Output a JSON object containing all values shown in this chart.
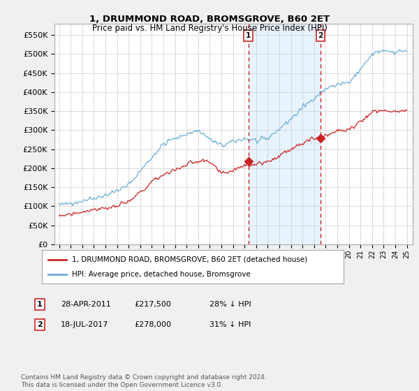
{
  "title": "1, DRUMMOND ROAD, BROMSGROVE, B60 2ET",
  "subtitle": "Price paid vs. HM Land Registry's House Price Index (HPI)",
  "ytick_vals": [
    0,
    50000,
    100000,
    150000,
    200000,
    250000,
    300000,
    350000,
    400000,
    450000,
    500000,
    550000
  ],
  "ylim": [
    0,
    580000
  ],
  "hpi_color": "#6baed6",
  "price_color": "#cc2222",
  "vline_color": "#cc2222",
  "shade_color": "#ddeeff",
  "transaction1_date": 2011.32,
  "transaction1_price": 217500,
  "transaction2_date": 2017.55,
  "transaction2_price": 278000,
  "legend_entry1": "1, DRUMMOND ROAD, BROMSGROVE, B60 2ET (detached house)",
  "legend_entry2": "HPI: Average price, detached house, Bromsgrove",
  "footnote": "Contains HM Land Registry data © Crown copyright and database right 2024.\nThis data is licensed under the Open Government Licence v3.0.",
  "background_color": "#f0f0f0",
  "plot_bg_color": "#ffffff",
  "grid_color": "#cccccc",
  "hpi_keypoints": {
    "1995.0": 103000,
    "1996": 108000,
    "1997": 115000,
    "1998": 122000,
    "1999": 130000,
    "2000": 140000,
    "2001": 158000,
    "2002": 195000,
    "2003": 230000,
    "2004": 265000,
    "2005": 278000,
    "2006": 290000,
    "2007": 300000,
    "2008": 275000,
    "2009": 260000,
    "2010": 270000,
    "2011": 278000,
    "2012": 272000,
    "2013": 278000,
    "2014": 305000,
    "2015": 330000,
    "2016": 360000,
    "2017": 385000,
    "2018": 410000,
    "2019": 420000,
    "2020": 425000,
    "2021": 460000,
    "2022": 500000,
    "2023": 510000,
    "2024": 505000,
    "2025.0": 510000
  },
  "price_keypoints": {
    "1995.0": 75000,
    "1996": 80000,
    "1997": 86000,
    "1998": 92000,
    "1999": 96000,
    "2000": 100000,
    "2001": 112000,
    "2002": 138000,
    "2003": 165000,
    "2004": 185000,
    "2005": 195000,
    "2006": 210000,
    "2007": 220000,
    "2008": 215000,
    "2009": 185000,
    "2010": 195000,
    "2011": 210000,
    "2012": 210000,
    "2013": 218000,
    "2014": 232000,
    "2015": 252000,
    "2016": 268000,
    "2017": 278000,
    "2018": 288000,
    "2019": 298000,
    "2020": 300000,
    "2021": 325000,
    "2022": 348000,
    "2023": 352000,
    "2024": 350000,
    "2025.0": 348000
  }
}
